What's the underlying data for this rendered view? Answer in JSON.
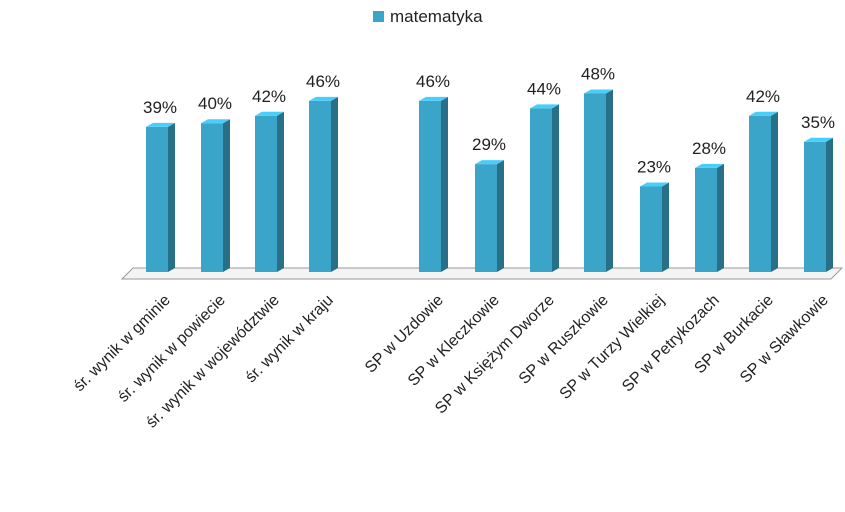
{
  "chart_data": {
    "type": "bar",
    "legend": {
      "position": "top",
      "entries": [
        {
          "name": "matematyka",
          "color": "#3aa5c8"
        }
      ]
    },
    "series": [
      {
        "name": "matematyka",
        "color": "#3aa5c8"
      }
    ],
    "categories": [
      "śr. wynik w gminie",
      "śr. wynik w powiecie",
      "śr. wynik w województwie",
      "śr. wynik w kraju",
      "SP w Uzdowie",
      "SP w Kleczkowie",
      "SP w Księżym Dworze",
      "SP w Ruszkowie",
      "SP w Turzy Wielkiej",
      "SP w Petrykozach",
      "SP w Burkacie",
      "SP w Sławkowie"
    ],
    "values": [
      39,
      40,
      42,
      46,
      46,
      29,
      44,
      48,
      23,
      28,
      42,
      35
    ],
    "value_labels": [
      "39%",
      "40%",
      "42%",
      "46%",
      "46%",
      "29%",
      "44%",
      "48%",
      "23%",
      "28%",
      "42%",
      "35%"
    ],
    "unit": "%",
    "ylim": [
      0,
      50
    ],
    "grid": false,
    "three_d": true
  }
}
